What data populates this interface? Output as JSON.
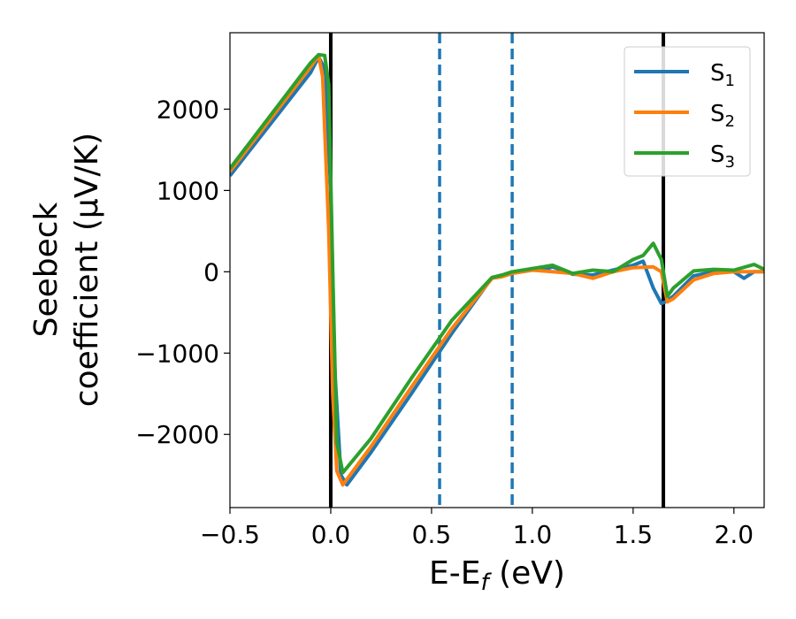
{
  "chart_data": {
    "type": "line",
    "title": "",
    "xlabel": "E-E_f (eV)",
    "ylabel": "Seebeck\ncoefficient  (μV/K)",
    "xlim": [
      -0.5,
      2.15
    ],
    "ylim": [
      -2900,
      2940
    ],
    "xticks": [
      -0.5,
      0.0,
      0.5,
      1.0,
      1.5,
      2.0
    ],
    "xtick_labels": [
      "−0.5",
      "0.0",
      "0.5",
      "1.0",
      "1.5",
      "2.0"
    ],
    "yticks": [
      -2000,
      -1000,
      0,
      1000,
      2000
    ],
    "ytick_labels": [
      "−2000",
      "−1000",
      "0",
      "1000",
      "2000"
    ],
    "legend_position": "top-right",
    "grid": false,
    "vlines": [
      {
        "x": 0.0,
        "style": "solid",
        "color": "#000000"
      },
      {
        "x": 1.65,
        "style": "solid",
        "color": "#000000"
      },
      {
        "x": 0.54,
        "style": "dashed",
        "color": "#1f77b4"
      },
      {
        "x": 0.9,
        "style": "dashed",
        "color": "#1f77b4"
      }
    ],
    "series": [
      {
        "name": "S1",
        "label_main": "S",
        "label_sub": "1",
        "color": "#1f77b4",
        "x": [
          -0.5,
          -0.1,
          -0.06,
          -0.03,
          0.0,
          0.02,
          0.05,
          0.08,
          0.2,
          0.4,
          0.6,
          0.8,
          0.85,
          0.9,
          1.0,
          1.05,
          1.1,
          1.2,
          1.3,
          1.4,
          1.5,
          1.55,
          1.6,
          1.64,
          1.66,
          1.7,
          1.8,
          1.9,
          2.0,
          2.05,
          2.1,
          2.15
        ],
        "y": [
          1180,
          2450,
          2640,
          2500,
          1000,
          -1200,
          -2500,
          -2620,
          -2220,
          -1500,
          -760,
          -70,
          -50,
          -20,
          40,
          20,
          60,
          -30,
          -40,
          20,
          80,
          130,
          -200,
          -390,
          -370,
          -300,
          -50,
          0,
          0,
          -80,
          0,
          0
        ]
      },
      {
        "name": "S2",
        "label_main": "S",
        "label_sub": "2",
        "color": "#ff7f0e",
        "x": [
          -0.5,
          -0.1,
          -0.06,
          -0.04,
          -0.01,
          0.01,
          0.03,
          0.06,
          0.2,
          0.4,
          0.6,
          0.8,
          0.85,
          0.9,
          1.0,
          1.1,
          1.2,
          1.3,
          1.4,
          1.5,
          1.6,
          1.64,
          1.67,
          1.7,
          1.8,
          1.9,
          2.0,
          2.15
        ],
        "y": [
          1230,
          2520,
          2660,
          2400,
          500,
          -1500,
          -2450,
          -2620,
          -2150,
          -1420,
          -700,
          -80,
          -60,
          -20,
          20,
          0,
          -20,
          -80,
          0,
          50,
          60,
          0,
          -370,
          -330,
          -100,
          -20,
          0,
          0
        ]
      },
      {
        "name": "S3",
        "label_main": "S",
        "label_sub": "3",
        "color": "#2ca02c",
        "x": [
          -0.5,
          -0.1,
          -0.06,
          -0.03,
          -0.01,
          0.01,
          0.03,
          0.06,
          0.2,
          0.4,
          0.6,
          0.8,
          0.85,
          0.9,
          1.0,
          1.05,
          1.1,
          1.2,
          1.3,
          1.4,
          1.5,
          1.55,
          1.6,
          1.64,
          1.67,
          1.7,
          1.8,
          1.9,
          2.0,
          2.1,
          2.15
        ],
        "y": [
          1270,
          2570,
          2670,
          2660,
          2300,
          0,
          -2100,
          -2470,
          -2050,
          -1310,
          -600,
          -70,
          -40,
          0,
          40,
          60,
          80,
          -20,
          20,
          0,
          150,
          200,
          350,
          150,
          -300,
          -200,
          10,
          30,
          20,
          90,
          30
        ]
      }
    ]
  }
}
